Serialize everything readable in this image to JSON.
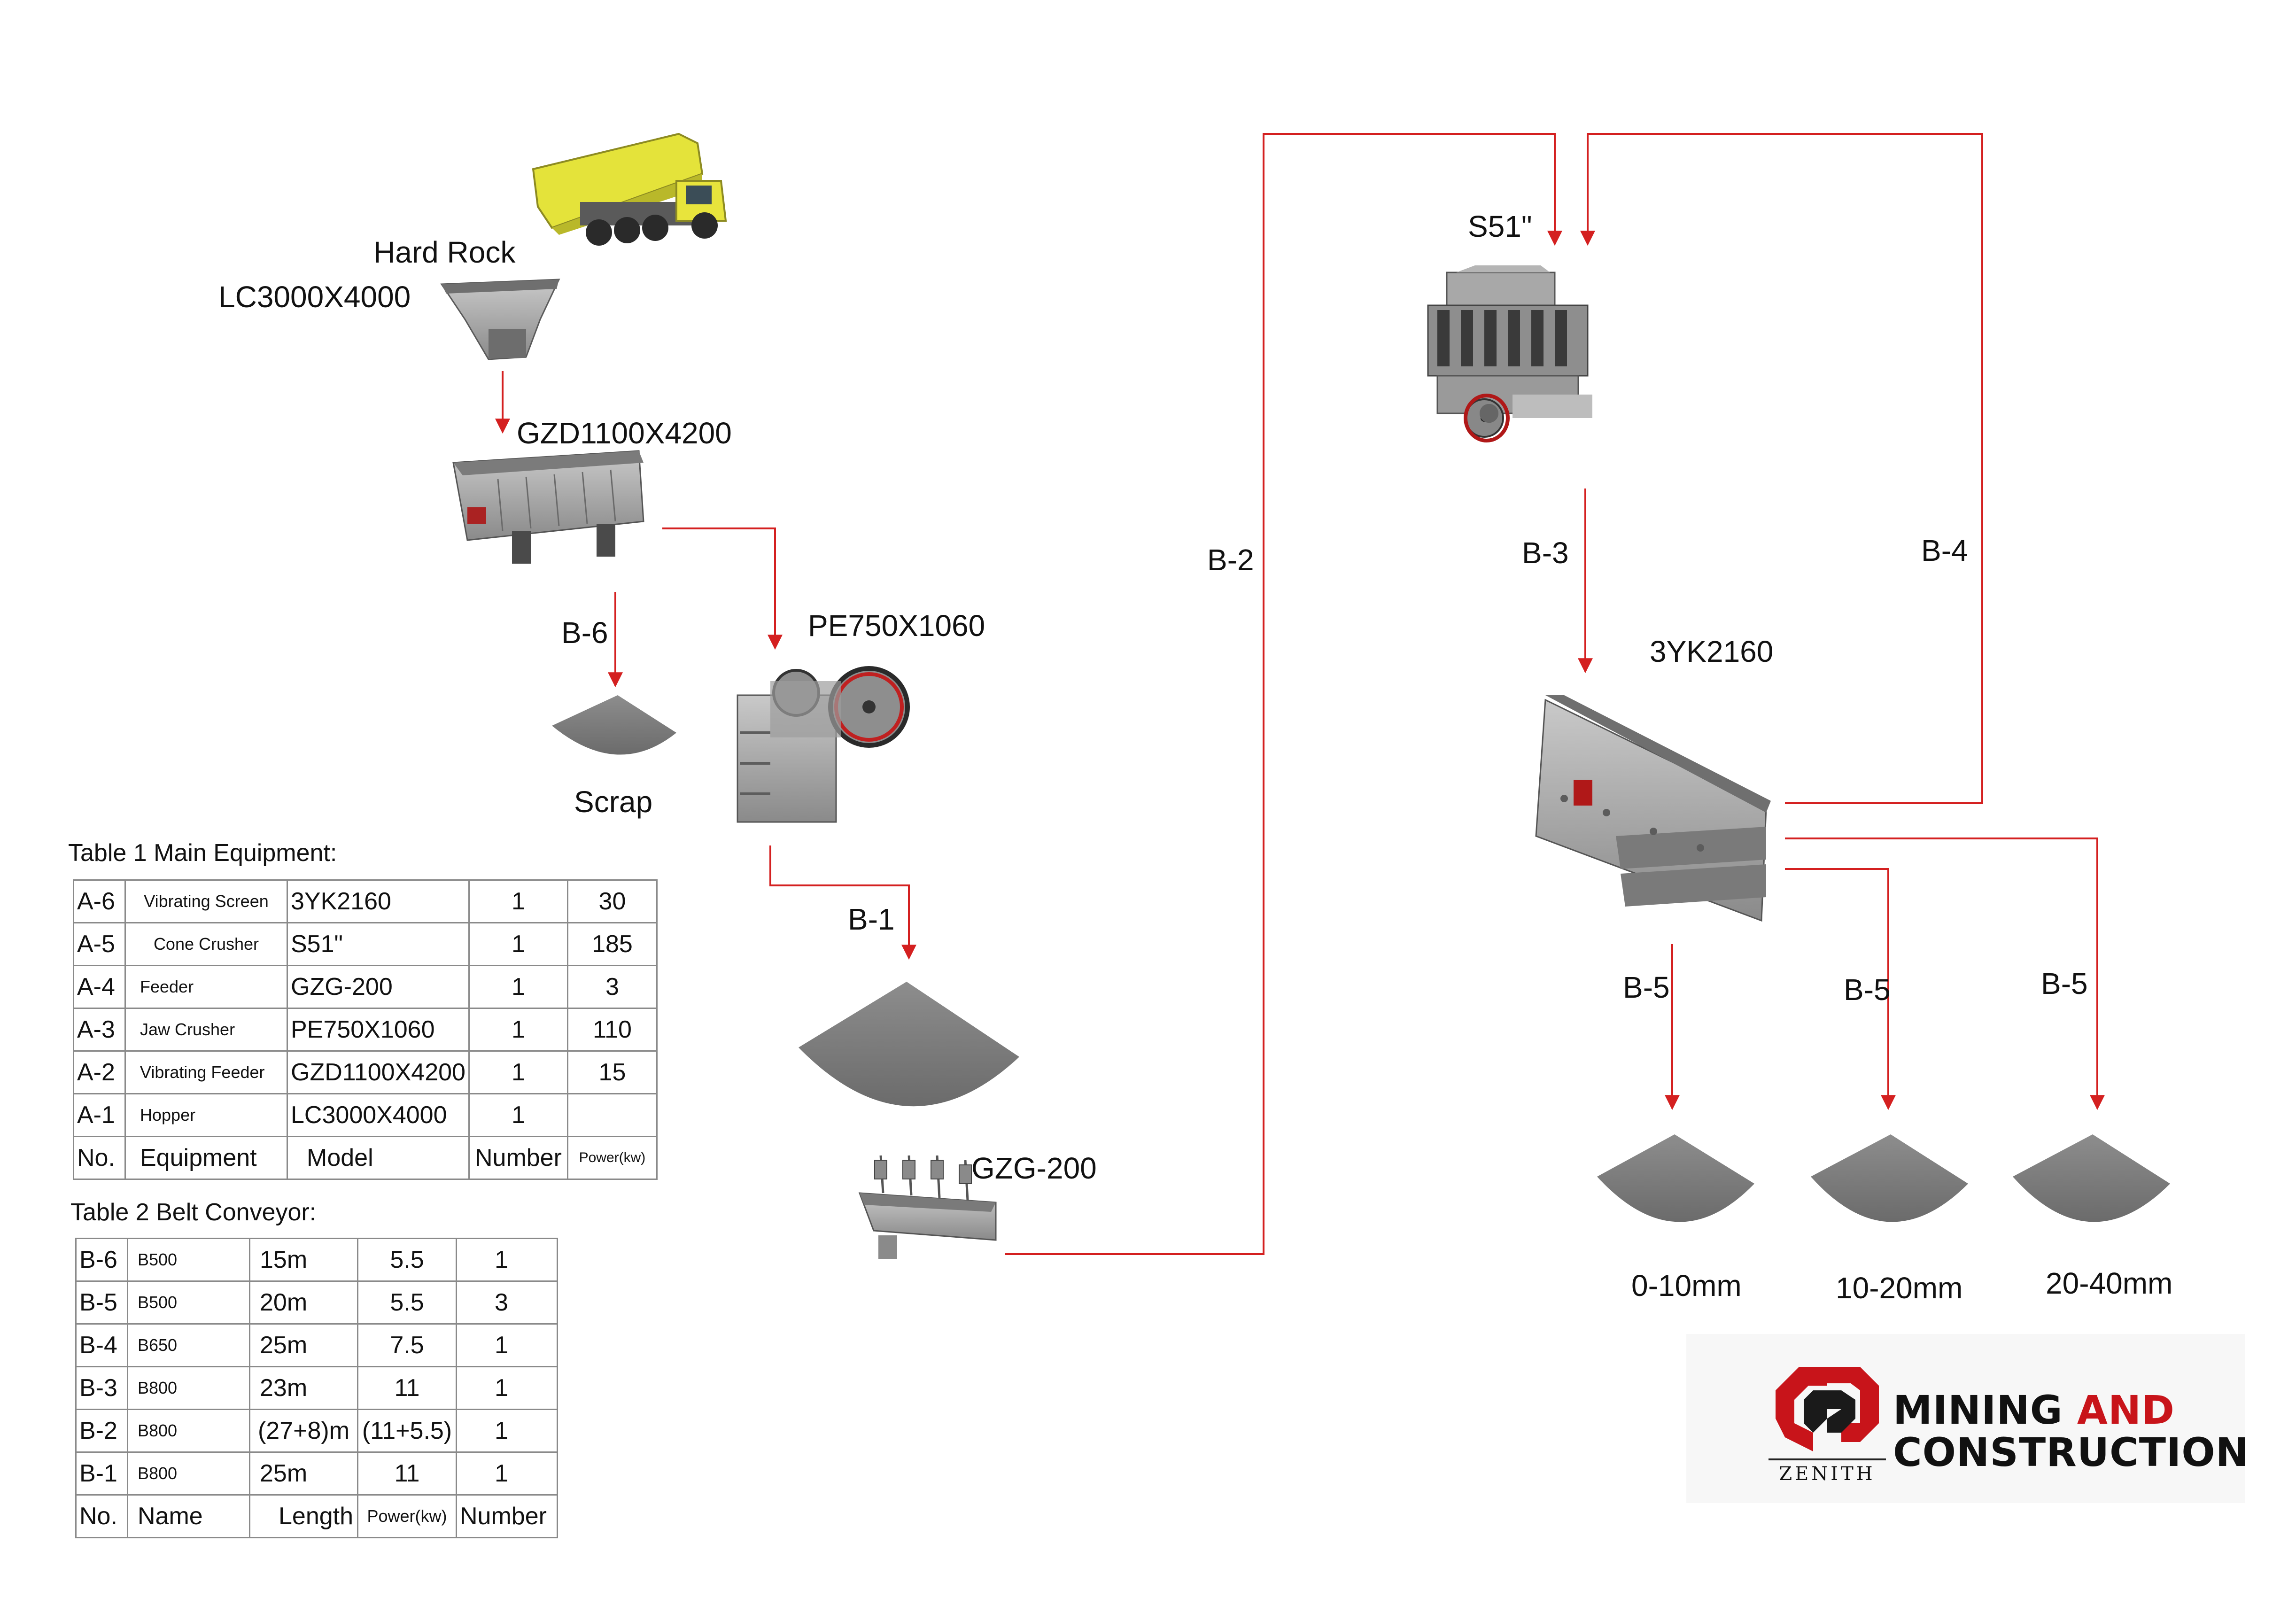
{
  "labels": {
    "hard_rock": "Hard Rock",
    "hopper_model": "LC3000X4000",
    "vib_feeder_model": "GZD1100X4200",
    "jaw_model": "PE750X1060",
    "scrap": "Scrap",
    "feeder_model": "GZG-200",
    "cone_model": "S51\"",
    "screen_model": "3YK2160",
    "b1": "B-1",
    "b2": "B-2",
    "b3": "B-3",
    "b4": "B-4",
    "b6": "B-6",
    "b5a": "B-5",
    "b5b": "B-5",
    "b5c": "B-5",
    "p1": "0-10mm",
    "p2": "10-20mm",
    "p3": "20-40mm"
  },
  "table1": {
    "caption": "Table 1 Main Equipment:",
    "rows": [
      [
        "A-6",
        "Vibrating Screen",
        "3YK2160",
        "1",
        "30"
      ],
      [
        "A-5",
        "Cone  Crusher",
        "S51\"",
        "1",
        "185"
      ],
      [
        "A-4",
        "Feeder",
        "GZG-200",
        "1",
        "3"
      ],
      [
        "A-3",
        "Jaw Crusher",
        "PE750X1060",
        "1",
        "110"
      ],
      [
        "A-2",
        "Vibrating Feeder",
        "GZD1100X4200",
        "1",
        "15"
      ],
      [
        "A-1",
        "Hopper",
        "LC3000X4000",
        "1",
        ""
      ]
    ],
    "header": [
      "No.",
      "Equipment",
      "Model",
      "Number",
      "Power(kw)"
    ]
  },
  "table2": {
    "caption": "Table 2 Belt Conveyor:",
    "rows": [
      [
        "B-6",
        "B500",
        "15m",
        "5.5",
        "1"
      ],
      [
        "B-5",
        "B500",
        "20m",
        "5.5",
        "3"
      ],
      [
        "B-4",
        "B650",
        "25m",
        "7.5",
        "1"
      ],
      [
        "B-3",
        "B800",
        "23m",
        "11",
        "1"
      ],
      [
        "B-2",
        "B800",
        "(27+8)m",
        "(11+5.5)",
        "1"
      ],
      [
        "B-1",
        "B800",
        "25m",
        "11",
        "1"
      ]
    ],
    "header": [
      "No.",
      "Name",
      "Length",
      "Power(kw)",
      "Number"
    ]
  },
  "logo": {
    "brand": "ZENITH",
    "line1a": "MINING ",
    "line1b": "AND",
    "line2": "CONSTRUCTION"
  },
  "colors": {
    "flow_line": "#d42020",
    "brand_red": "#c8141a",
    "equipment_gray": "#8c8c8c"
  }
}
